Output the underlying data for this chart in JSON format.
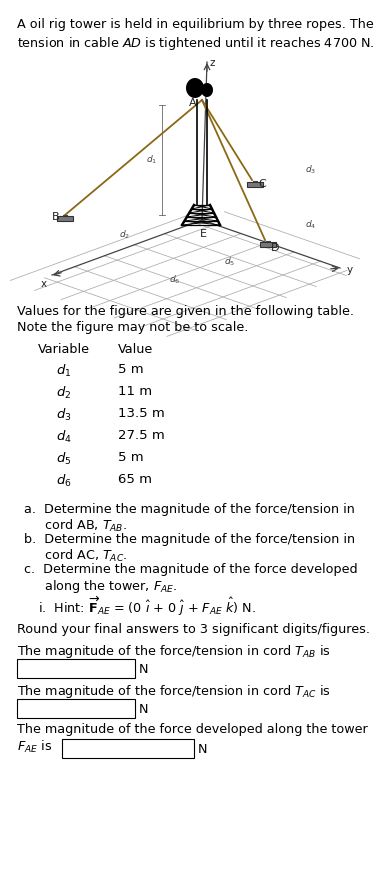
{
  "title_line1": "A oil rig tower is held in equilibrium by three ropes. The",
  "title_line2": "tension in cable $AD$ is tightened until it reaches 4700 N.",
  "table_intro_line1": "Values for the figure are given in the following table.",
  "table_intro_line2": "Note the figure may not be to scale.",
  "table_header_var": "Variable",
  "table_header_val": "Value",
  "table_rows": [
    [
      "$d_1$",
      "5 m"
    ],
    [
      "$d_2$",
      "11 m"
    ],
    [
      "$d_3$",
      "13.5 m"
    ],
    [
      "$d_4$",
      "27.5 m"
    ],
    [
      "$d_5$",
      "5 m"
    ],
    [
      "$d_6$",
      "65 m"
    ]
  ],
  "round_text": "Round your final answers to 3 significant digits/figures.",
  "answer1_prefix": "The magnitude of the force/tension in cord $T_{AB}$ is",
  "answer2_prefix": "The magnitude of the force/tension in cord $T_{AC}$ is",
  "answer3_prefix_line1": "The magnitude of the force developed along the tower",
  "unit": "N",
  "bg_color": "#ffffff",
  "text_color": "#000000",
  "rope_color": "#8B6914",
  "grid_color": "#aaaaaa",
  "tower_color": "#000000"
}
